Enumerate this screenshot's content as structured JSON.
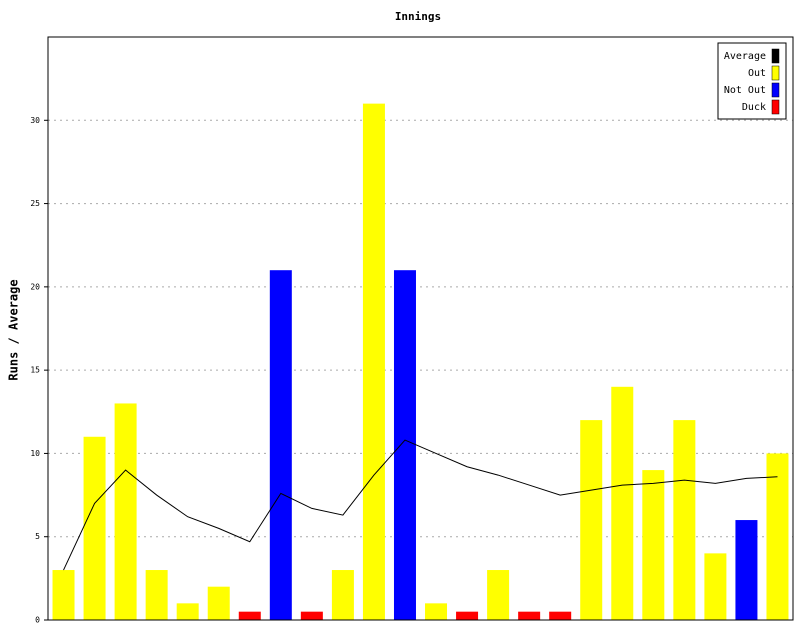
{
  "chart_data": {
    "type": "bar",
    "title": "Innings",
    "y_label": "Runs / Average",
    "categories": [
      null,
      null,
      null,
      null,
      null,
      null,
      null,
      null,
      null,
      null,
      null,
      null,
      null,
      null,
      null,
      null,
      null,
      null,
      null,
      null,
      null,
      null,
      null,
      null
    ],
    "series": [
      {
        "name": "Average",
        "color": "#000000",
        "kind": "line",
        "values": [
          3,
          7,
          9,
          7.5,
          6.2,
          5.5,
          4.7,
          7.6,
          6.7,
          6.3,
          8.7,
          10.8,
          10,
          9.2,
          8.7,
          8.1,
          7.5,
          7.8,
          8.1,
          8.2,
          8.4,
          8.2,
          8.5,
          8.6
        ]
      },
      {
        "name": "Out",
        "color": "#ffff00",
        "kind": "bar",
        "values": [
          3,
          11,
          13,
          3,
          1,
          2,
          null,
          null,
          null,
          3,
          31,
          null,
          1,
          null,
          3,
          null,
          null,
          12,
          14,
          9,
          12,
          4,
          null,
          10
        ]
      },
      {
        "name": "Not Out",
        "color": "#0000ff",
        "kind": "bar",
        "values": [
          null,
          null,
          null,
          null,
          null,
          null,
          null,
          21,
          null,
          null,
          null,
          21,
          null,
          null,
          null,
          null,
          null,
          null,
          null,
          null,
          null,
          null,
          6,
          null
        ]
      },
      {
        "name": "Duck",
        "color": "#ff0000",
        "kind": "bar",
        "values": [
          null,
          null,
          null,
          null,
          null,
          null,
          0.5,
          null,
          0.5,
          null,
          null,
          null,
          null,
          0.5,
          null,
          0.5,
          0.5,
          null,
          null,
          null,
          null,
          null,
          null,
          null
        ]
      }
    ],
    "ylim": [
      0,
      35
    ],
    "yticks": [
      0,
      5,
      10,
      15,
      20,
      25,
      30
    ],
    "grid": true,
    "legend": "top-right"
  }
}
